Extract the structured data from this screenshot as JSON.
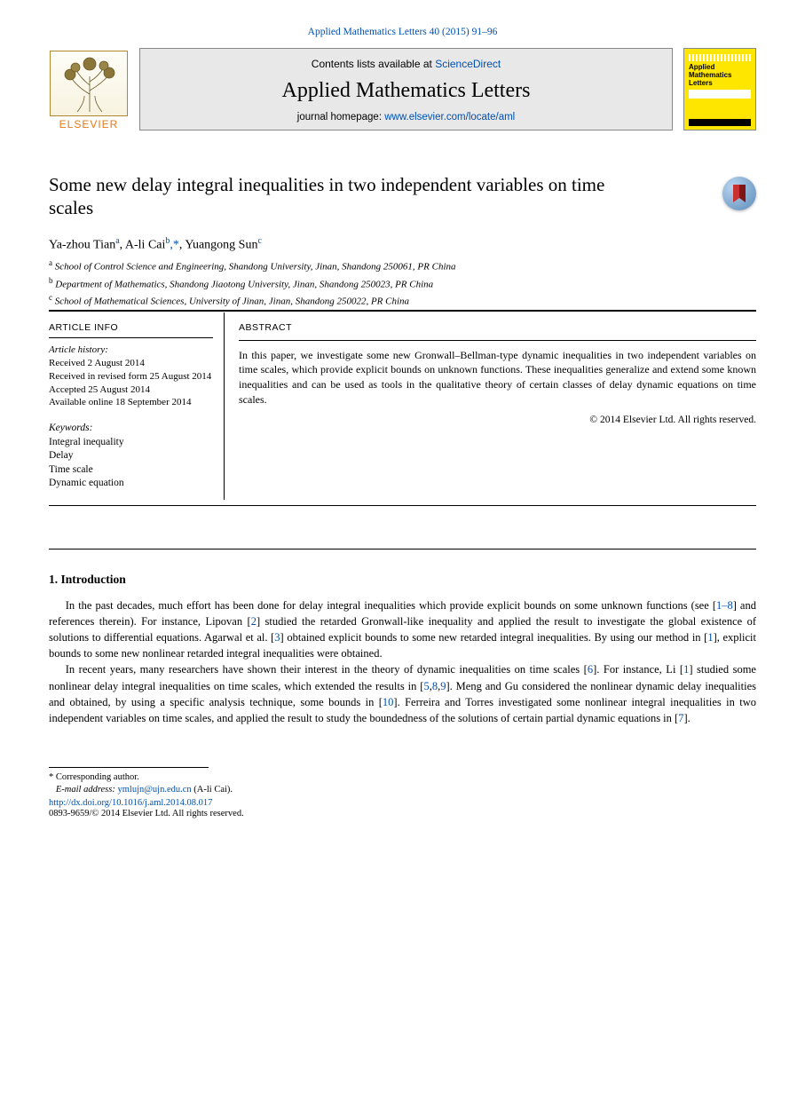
{
  "header": {
    "bib_link_text": "Applied Mathematics Letters 40 (2015) 91–96",
    "contents_prefix": "Contents lists available at ",
    "contents_link": "ScienceDirect",
    "journal_title": "Applied Mathematics Letters",
    "homepage_prefix": "journal homepage: ",
    "homepage_link": "www.elsevier.com/locate/aml",
    "elsevier_text": "ELSEVIER",
    "cover": {
      "line1": "Applied",
      "line2": "Mathematics",
      "line3": "Letters"
    }
  },
  "paper": {
    "title": "Some new delay integral inequalities in two independent variables on time scales",
    "authors_html": "Ya-zhou Tian<sup style='color:#0050b0'>a</sup>, A-li Cai<sup style='color:#0050b0'>b</sup><span class='corr-star'>,*</span>, Yuangong Sun<sup style='color:#0050b0'>c</sup>",
    "affiliations": [
      {
        "sup": "a",
        "text": "School of Control Science and Engineering, Shandong University, Jinan, Shandong 250061, PR China"
      },
      {
        "sup": "b",
        "text": "Department of Mathematics, Shandong Jiaotong University, Jinan, Shandong 250023, PR China"
      },
      {
        "sup": "c",
        "text": "School of Mathematical Sciences, University of Jinan, Jinan, Shandong 250022, PR China"
      }
    ],
    "article_info_label": "ARTICLE INFO",
    "abstract_label": "ABSTRACT",
    "history": {
      "heading": "Article history:",
      "received": "Received 2 August 2014",
      "revised": "Received in revised form 25 August 2014",
      "accepted": "Accepted 25 August 2014",
      "online": "Available online 18 September 2014"
    },
    "keywords_heading": "Keywords:",
    "keywords": [
      "Integral inequality",
      "Delay",
      "Time scale",
      "Dynamic equation"
    ],
    "abstract": "In this paper, we investigate some new Gronwall–Bellman-type dynamic inequalities in two independent variables on time scales, which provide explicit bounds on unknown functions. These inequalities generalize and extend some known inequalities and can be used as tools in the qualitative theory of certain classes of delay dynamic equations on time scales.",
    "abs_copyright": "© 2014 Elsevier Ltd. All rights reserved."
  },
  "intro": {
    "heading": "1. Introduction",
    "p1_a": "In the past decades, much effort has been done for delay integral inequalities which provide explicit bounds on some unknown functions (see [",
    "p1_cite1": "1–8",
    "p1_b": "] and references therein). For instance, Lipovan [",
    "p1_cite2": "2",
    "p1_c": "] studied the retarded Gronwall-like inequality and applied the result to investigate the global existence of solutions to differential equations. Agarwal et al. [",
    "p1_cite3": "3",
    "p1_d": "] obtained explicit bounds to some new retarded integral inequalities. By using our method in [",
    "p1_cite4": "1",
    "p1_e": "], explicit bounds to some new nonlinear retarded integral inequalities were obtained.",
    "p2_a": "In recent years, many researchers have shown their interest in the theory of dynamic inequalities on time scales [",
    "p2_cite1": "6",
    "p2_b": "]. For instance, Li [",
    "p2_cite2": "1",
    "p2_c": "] studied some nonlinear delay integral inequalities on time scales, which extended the results in [",
    "p2_cite3": "5",
    "p2_d": ",",
    "p2_cite4": "8",
    "p2_e": ",",
    "p2_cite5": "9",
    "p2_f": "]. Meng and Gu considered the nonlinear dynamic delay inequalities and obtained, by using a specific analysis technique, some bounds in [",
    "p2_cite6": "10",
    "p2_g": "]. Ferreira and Torres investigated some nonlinear integral inequalities in two independent variables on time scales, and applied the result to study the boundedness of the solutions of certain partial dynamic equations in [",
    "p2_cite7": "7",
    "p2_h": "]."
  },
  "footer": {
    "corr_symbol": "*",
    "corr_text": " Corresponding author.",
    "email_label": "E-mail address: ",
    "email": "ymlujn@ujn.edu.cn ",
    "email_owner": "(A-li Cai).",
    "doi_link": "http://dx.doi.org/10.1016/j.aml.2014.08.017",
    "copyright_line": "0893-9659/© 2014 Elsevier Ltd. All rights reserved."
  },
  "colors": {
    "link": "#0050b0",
    "banner_bg": "#e8e8e8",
    "cover_bg": "#ffe600",
    "elsevier_orange": "#e67817"
  }
}
